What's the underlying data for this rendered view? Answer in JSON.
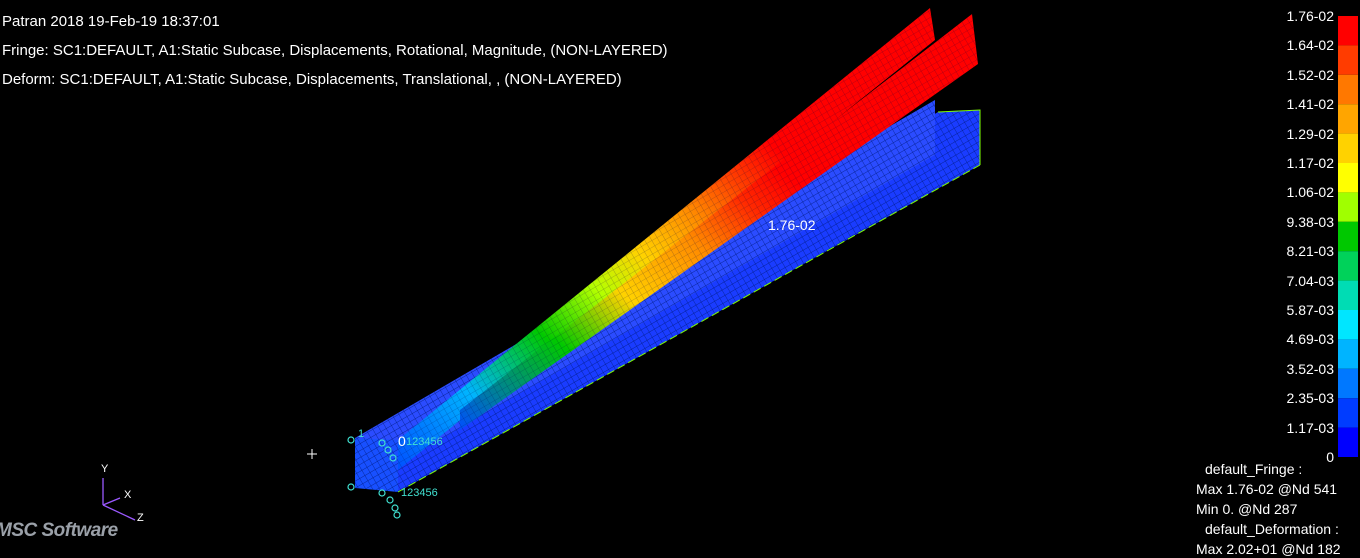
{
  "header": {
    "line1": "Patran 2018 19-Feb-19 18:37:01",
    "line2": "Fringe: SC1:DEFAULT, A1:Static Subcase, Displacements, Rotational, Magnitude, (NON-LAYERED)",
    "line3": "Deform: SC1:DEFAULT, A1:Static Subcase, Displacements, Translational, , (NON-LAYERED)"
  },
  "legend": {
    "labels": [
      "1.76-02",
      "1.64-02",
      "1.52-02",
      "1.41-02",
      "1.29-02",
      "1.17-02",
      "1.06-02",
      "9.38-03",
      "8.21-03",
      "7.04-03",
      "5.87-03",
      "4.69-03",
      "3.52-03",
      "2.35-03",
      "1.17-03",
      "0"
    ],
    "colors": [
      "#ff0000",
      "#ff3c00",
      "#ff7800",
      "#ffa500",
      "#ffd200",
      "#ffff00",
      "#a0ff00",
      "#00c800",
      "#00d25a",
      "#00dcb4",
      "#00e6ff",
      "#00b4ff",
      "#0078ff",
      "#003cff",
      "#0000ff"
    ]
  },
  "annotations": {
    "max_label": "1.76-02",
    "spc_top": "123456",
    "spc_bottom": "123456",
    "spc_top_prefix": "1",
    "spc_top_digit": "0"
  },
  "axes": {
    "x": "X",
    "y": "Y",
    "z": "Z"
  },
  "stats": {
    "fringe_title": "default_Fringe :",
    "fringe_max": "Max 1.76-02 @Nd 541",
    "fringe_min": "Min  0. @Nd 287",
    "deform_title": "default_Deformation :",
    "deform_max": "Max 2.02+01 @Nd 182"
  },
  "logo": "MSC Software"
}
